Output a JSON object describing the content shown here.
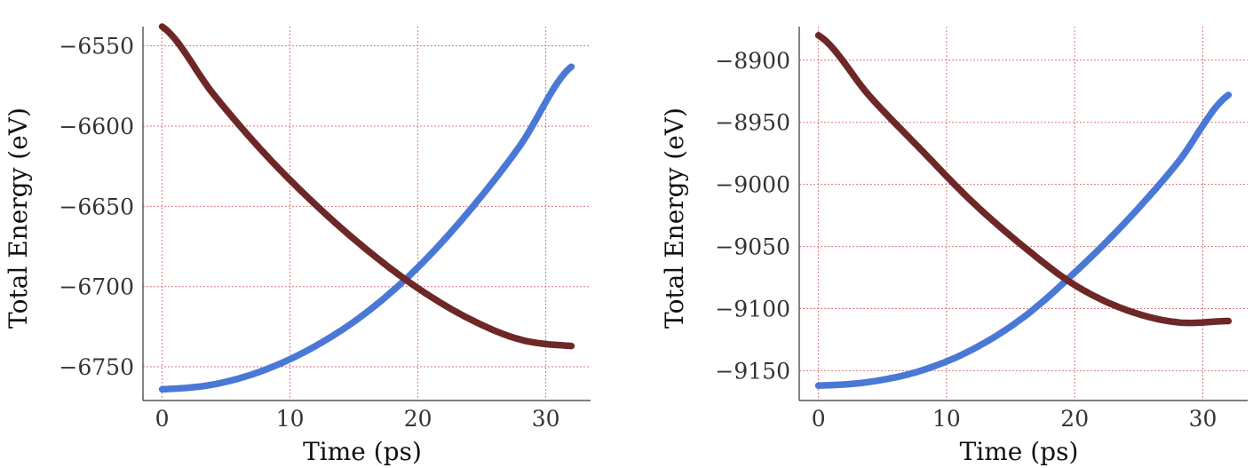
{
  "chart_data": [
    {
      "type": "line",
      "xlabel": "Time (ps)",
      "ylabel": "Total Energy (eV)",
      "xlim": [
        -1.5,
        33.5
      ],
      "ylim": [
        -6771,
        -6538
      ],
      "xticks": [
        0,
        10,
        20,
        30
      ],
      "yticks": [
        -6550,
        -6600,
        -6650,
        -6700,
        -6750
      ],
      "xtick_labels": [
        "0",
        "10",
        "20",
        "30"
      ],
      "ytick_labels": [
        "−6550",
        "−6600",
        "−6650",
        "−6700",
        "−6750"
      ],
      "grid": true,
      "series": [
        {
          "color": "#4a78d6",
          "x": [
            0,
            4,
            8,
            12,
            16,
            20,
            24,
            28,
            32
          ],
          "values": [
            -6764,
            -6761,
            -6752,
            -6737,
            -6716,
            -6688,
            -6653,
            -6612,
            -6563
          ]
        },
        {
          "color": "#6e2727",
          "x": [
            0,
            4,
            8,
            12,
            16,
            20,
            24,
            28,
            32
          ],
          "values": [
            -6538,
            -6580,
            -6617,
            -6649,
            -6677,
            -6701,
            -6720,
            -6733,
            -6737
          ]
        }
      ]
    },
    {
      "type": "line",
      "xlabel": "Time (ps)",
      "ylabel": "Total Energy (eV)",
      "xlim": [
        -1.5,
        33.5
      ],
      "ylim": [
        -9174,
        -8873
      ],
      "xticks": [
        0,
        10,
        20,
        30
      ],
      "yticks": [
        -8900,
        -8950,
        -9000,
        -9050,
        -9100,
        -9150
      ],
      "xtick_labels": [
        "0",
        "10",
        "20",
        "30"
      ],
      "ytick_labels": [
        "−8900",
        "−8950",
        "−9000",
        "−9050",
        "−9100",
        "−9150"
      ],
      "grid": true,
      "series": [
        {
          "color": "#4a78d6",
          "x": [
            0,
            4,
            8,
            12,
            16,
            20,
            24,
            28,
            32
          ],
          "values": [
            -9162,
            -9159,
            -9150,
            -9133,
            -9107,
            -9071,
            -9030,
            -8983,
            -8928
          ]
        },
        {
          "color": "#6e2727",
          "x": [
            0,
            4,
            8,
            12,
            16,
            20,
            24,
            28,
            32
          ],
          "values": [
            -8880,
            -8929,
            -8972,
            -9014,
            -9050,
            -9081,
            -9101,
            -9111,
            -9110
          ]
        }
      ]
    }
  ]
}
